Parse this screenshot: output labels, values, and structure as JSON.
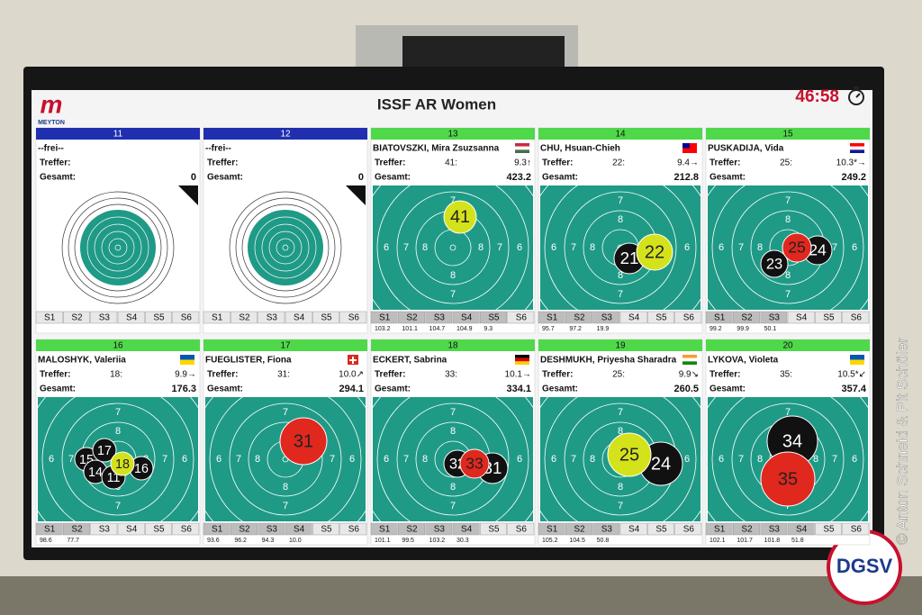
{
  "header": {
    "logo": "MEYTON",
    "title": "ISSF AR Women",
    "timer": "46:58"
  },
  "watermark": "© Anton Schneid & Pit Schöler",
  "badge": "DGSV",
  "treffer_label": "Treffer:",
  "gesamt_label": "Gesamt:",
  "series_labels": [
    "S1",
    "S2",
    "S3",
    "S4",
    "S5",
    "S6"
  ],
  "ring_labels": [
    "6",
    "7",
    "8"
  ],
  "lanes": [
    {
      "lane": "11",
      "header_color": "#1f2fb0",
      "name": "--frei--",
      "total": "0"
    },
    {
      "lane": "12",
      "header_color": "#1f2fb0",
      "name": "--frei--",
      "total": "0"
    },
    {
      "lane": "13",
      "header_color": "#4fd84a",
      "name": "BIATOVSZKI, Mira Zsuzsanna",
      "hits": "41:",
      "last": "9.3↑",
      "total": "423.2",
      "series_scores": [
        "103.2",
        "101.1",
        "104.7",
        "104.9",
        "9.3"
      ],
      "shots": [
        {
          "label": "41",
          "color": "#d4e21c"
        }
      ]
    },
    {
      "lane": "14",
      "header_color": "#4fd84a",
      "name": "CHU, Hsuan-Chieh",
      "hits": "22:",
      "last": "9.4→",
      "total": "212.8",
      "series_scores": [
        "95.7",
        "97.2",
        "19.9"
      ],
      "shots": [
        {
          "label": "21",
          "color": "#111111"
        },
        {
          "label": "22",
          "color": "#d4e21c"
        }
      ]
    },
    {
      "lane": "15",
      "header_color": "#4fd84a",
      "name": "PUSKADIJA, Vida",
      "hits": "25:",
      "last": "10.3*→",
      "total": "249.2",
      "series_scores": [
        "99.2",
        "99.9",
        "50.1"
      ],
      "shots": [
        {
          "label": "23",
          "color": "#111111"
        },
        {
          "label": "24",
          "color": "#111111"
        },
        {
          "label": "25",
          "color": "#e0281e"
        }
      ]
    },
    {
      "lane": "16",
      "header_color": "#4fd84a",
      "name": "MALOSHYK, Valeriia",
      "hits": "18:",
      "last": "9.9→",
      "total": "176.3",
      "series_scores": [
        "98.6",
        "77.7"
      ],
      "shots": [
        {
          "label": "15",
          "color": "#111111"
        },
        {
          "label": "17",
          "color": "#111111"
        },
        {
          "label": "14",
          "color": "#111111"
        },
        {
          "label": "11",
          "color": "#111111"
        },
        {
          "label": "16",
          "color": "#111111"
        },
        {
          "label": "18",
          "color": "#d4e21c"
        }
      ]
    },
    {
      "lane": "17",
      "header_color": "#4fd84a",
      "name": "FUEGLISTER, Fiona",
      "hits": "31:",
      "last": "10.0↗",
      "total": "294.1",
      "series_scores": [
        "93.6",
        "96.2",
        "94.3",
        "10.0"
      ],
      "shots": [
        {
          "label": "31",
          "color": "#e0281e"
        }
      ]
    },
    {
      "lane": "18",
      "header_color": "#4fd84a",
      "name": "ECKERT, Sabrina",
      "hits": "33:",
      "last": "10.1→",
      "total": "334.1",
      "series_scores": [
        "101.1",
        "99.5",
        "103.2",
        "30.3"
      ],
      "shots": [
        {
          "label": "32",
          "color": "#111111"
        },
        {
          "label": "31",
          "color": "#111111"
        },
        {
          "label": "33",
          "color": "#e0281e"
        }
      ]
    },
    {
      "lane": "19",
      "header_color": "#4fd84a",
      "name": "DESHMUKH, Priyesha Sharadra",
      "hits": "25:",
      "last": "9.9↘",
      "total": "260.5",
      "series_scores": [
        "105.2",
        "104.5",
        "50.8"
      ],
      "shots": [
        {
          "label": "24",
          "color": "#111111"
        },
        {
          "label": "25",
          "color": "#d4e21c"
        }
      ]
    },
    {
      "lane": "20",
      "header_color": "#4fd84a",
      "name": "LYKOVA, Violeta",
      "hits": "35:",
      "last": "10.5*↙",
      "total": "357.4",
      "series_scores": [
        "102.1",
        "101.7",
        "101.8",
        "51.8"
      ],
      "shots": [
        {
          "label": "34",
          "color": "#111111"
        },
        {
          "label": "35",
          "color": "#e0281e"
        }
      ]
    }
  ]
}
